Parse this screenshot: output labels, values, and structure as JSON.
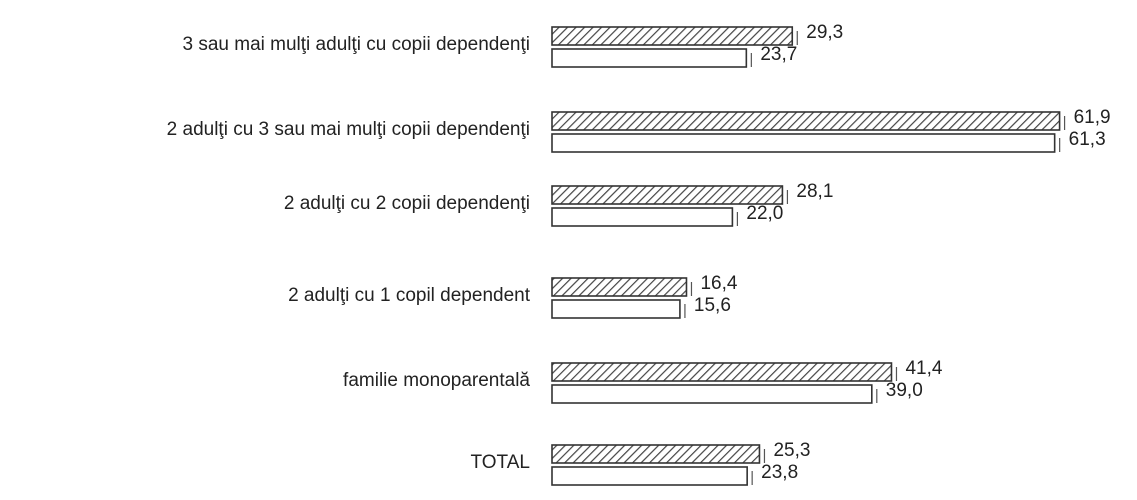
{
  "chart_data": {
    "type": "bar",
    "orientation": "horizontal",
    "categories": [
      "3 sau mai mulţi adulţi cu copii dependenţi",
      "2 adulţi cu 3 sau mai mulţi copii dependenţi",
      "2 adulţi cu 2 copii dependenţi",
      "2 adulţi cu 1 copil dependent",
      "familie monoparentală",
      "TOTAL"
    ],
    "series": [
      {
        "color": "#444444",
        "hatch": true,
        "values": [
          29.3,
          61.9,
          28.1,
          16.4,
          41.4,
          25.3
        ],
        "value_labels": [
          "29,3",
          "61,9",
          "28,1",
          "16,4",
          "41,4",
          "25,3"
        ]
      },
      {
        "color": "#ffffff",
        "hatch": false,
        "values": [
          23.7,
          61.3,
          22.0,
          15.6,
          39.0,
          23.8
        ],
        "value_labels": [
          "23,7",
          "61,3",
          "22,0",
          "15,6",
          "39,0",
          "23,8"
        ]
      }
    ]
  }
}
